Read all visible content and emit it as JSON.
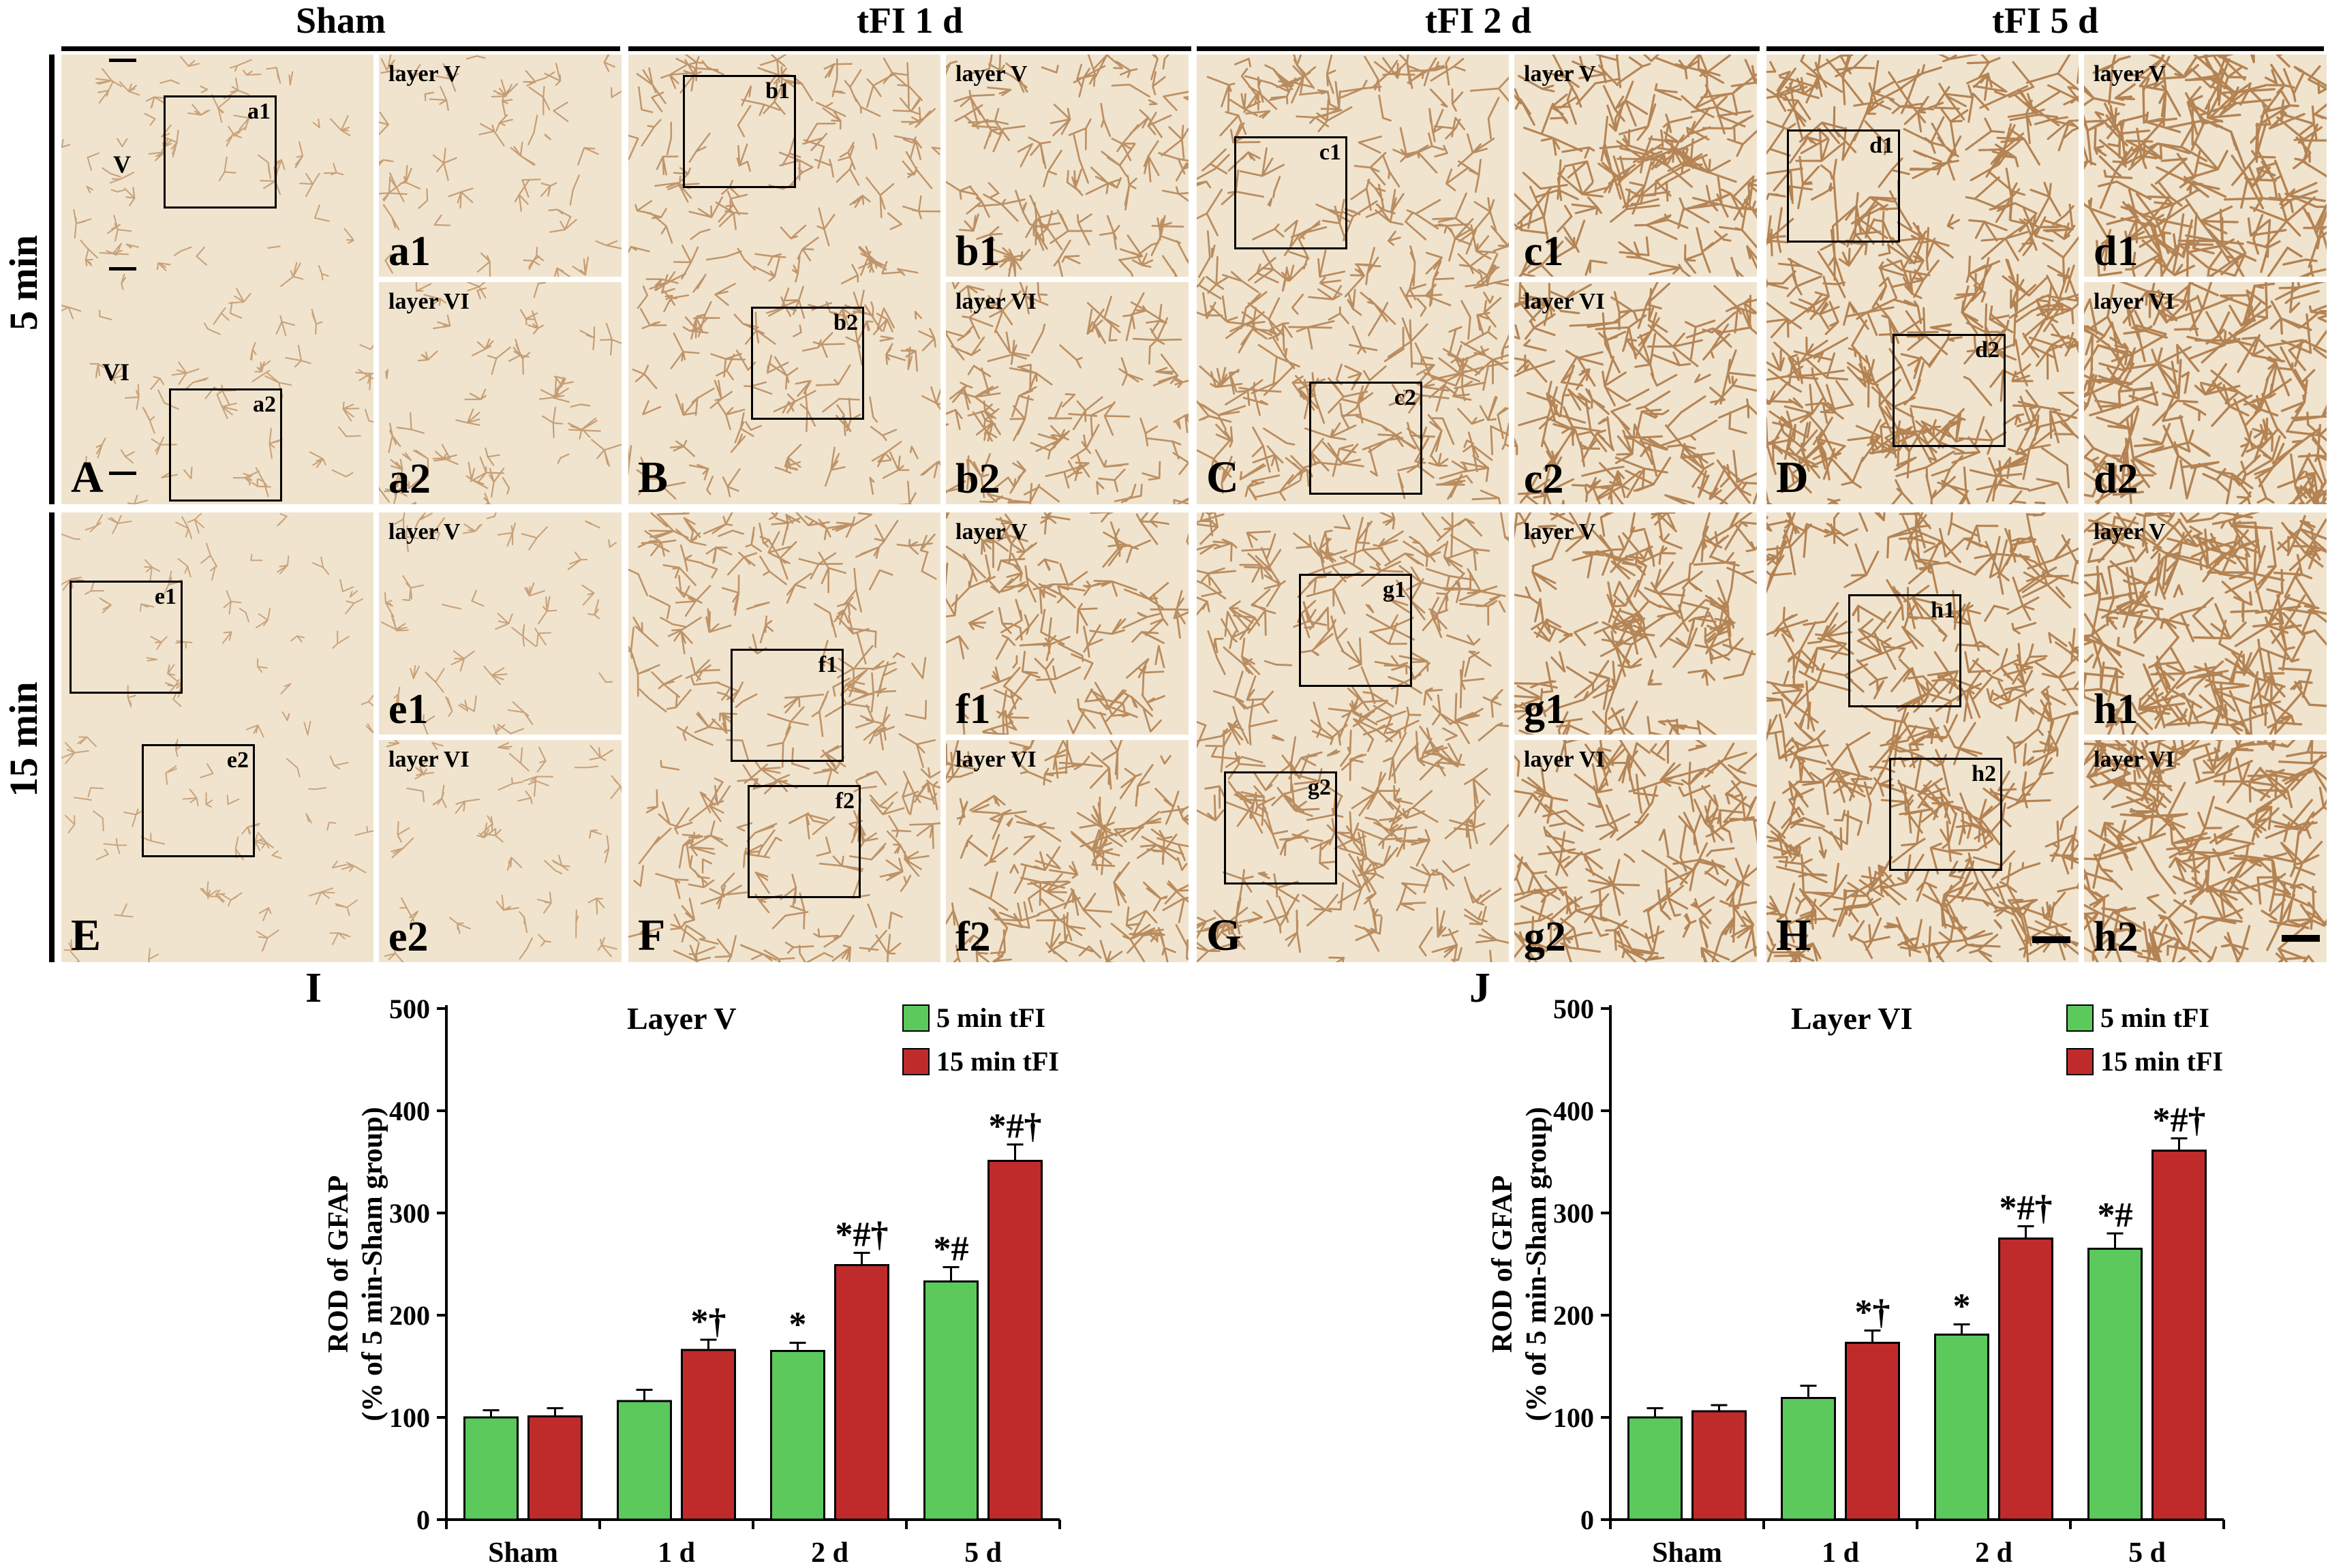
{
  "micrograph_grid": {
    "column_headers": [
      "Sham",
      "tFI 1 d",
      "tFI 2 d",
      "tFI 5 d"
    ],
    "row_headers": [
      "5 min",
      "15 min"
    ],
    "main_panel_labels": [
      "A",
      "B",
      "C",
      "D",
      "E",
      "F",
      "G",
      "H"
    ],
    "inset_labels": [
      [
        "a1",
        "a2"
      ],
      [
        "b1",
        "b2"
      ],
      [
        "c1",
        "c2"
      ],
      [
        "d1",
        "d2"
      ],
      [
        "e1",
        "e2"
      ],
      [
        "f1",
        "f2"
      ],
      [
        "g1",
        "g2"
      ],
      [
        "h1",
        "h2"
      ]
    ],
    "inset_titles": [
      "layer V",
      "layer VI"
    ],
    "cortical_layers": [
      "V",
      "VI"
    ]
  },
  "chart_data": [
    {
      "type": "bar",
      "panel_label": "I",
      "title": "Layer V",
      "categories": [
        "Sham",
        "1 d",
        "2 d",
        "5 d"
      ],
      "series": [
        {
          "name": "5 min tFI",
          "color": "#5cc95c",
          "values": [
            100,
            116,
            165,
            233
          ],
          "errors": [
            7,
            11,
            8,
            14
          ],
          "annotations": [
            "",
            "",
            "*",
            "*#"
          ]
        },
        {
          "name": "15 min tFI",
          "color": "#bf2b2b",
          "values": [
            101,
            166,
            249,
            351
          ],
          "errors": [
            8,
            10,
            12,
            16
          ],
          "annotations": [
            "",
            "*†",
            "*#†",
            "*#†"
          ]
        }
      ],
      "xlabel": "",
      "ylabel": "ROD of GFAP",
      "ylabel_sub": "(% of 5 min-Sham group)",
      "ylim": [
        0,
        500
      ],
      "yticks": [
        0,
        100,
        200,
        300,
        400,
        500
      ]
    },
    {
      "type": "bar",
      "panel_label": "J",
      "title": "Layer VI",
      "categories": [
        "Sham",
        "1 d",
        "2 d",
        "5 d"
      ],
      "series": [
        {
          "name": "5 min tFI",
          "color": "#5cc95c",
          "values": [
            100,
            119,
            181,
            265
          ],
          "errors": [
            9,
            12,
            10,
            15
          ],
          "annotations": [
            "",
            "",
            "*",
            "*#"
          ]
        },
        {
          "name": "15 min tFI",
          "color": "#bf2b2b",
          "values": [
            106,
            173,
            275,
            361
          ],
          "errors": [
            6,
            12,
            12,
            12
          ],
          "annotations": [
            "",
            "*†",
            "*#†",
            "*#†"
          ]
        }
      ],
      "xlabel": "",
      "ylabel": "ROD of GFAP",
      "ylabel_sub": "(% of 5 min-Sham group)",
      "ylim": [
        0,
        500
      ],
      "yticks": [
        0,
        100,
        200,
        300,
        400,
        500
      ]
    }
  ]
}
